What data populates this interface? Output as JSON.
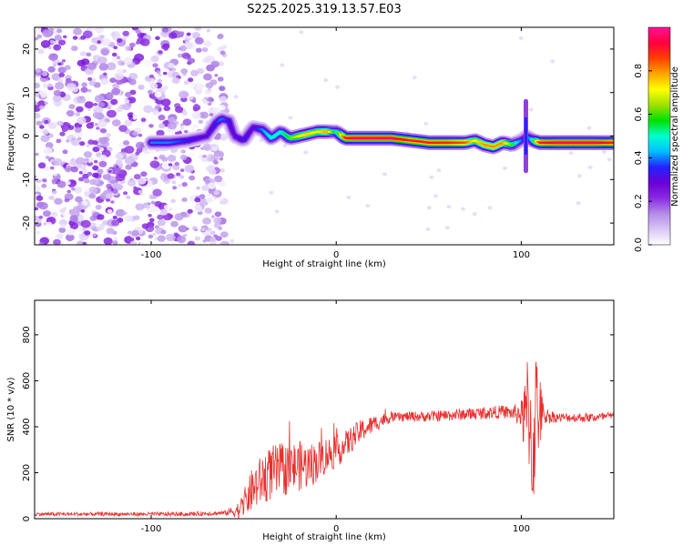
{
  "title": "S225.2025.319.13.57.E03",
  "chart_data": [
    {
      "type": "heatmap",
      "name": "spectrogram",
      "xlabel": "Height of straight line (km)",
      "ylabel": "Frequency (Hz)",
      "xlim": [
        -163,
        150
      ],
      "ylim": [
        -25,
        25
      ],
      "xticks": [
        {
          "value": -100,
          "label": "-100"
        },
        {
          "value": 0,
          "label": "0"
        },
        {
          "value": 100,
          "label": "100"
        }
      ],
      "yticks": [
        {
          "value": 20,
          "label": "20"
        },
        {
          "value": 10,
          "label": "10"
        },
        {
          "value": 0,
          "label": "0"
        },
        {
          "value": -10,
          "label": "-10"
        },
        {
          "value": -20,
          "label": "-20"
        }
      ],
      "colorbar": {
        "label": "Normalized spectral amplitude",
        "range": [
          0,
          1
        ],
        "ticks": [
          {
            "value": 0.0,
            "label": "0.0"
          },
          {
            "value": 0.2,
            "label": "0.2"
          },
          {
            "value": 0.4,
            "label": "0.4"
          },
          {
            "value": 0.6,
            "label": "0.6"
          },
          {
            "value": 0.8,
            "label": "0.8"
          }
        ],
        "stops": [
          "#ffffff",
          "#d9c6f5",
          "#b48ce8",
          "#8a2be2",
          "#6a00d4",
          "#2222ff",
          "#00bfff",
          "#00ffcc",
          "#00e000",
          "#a0e000",
          "#ffff00",
          "#ffa500",
          "#ff4000",
          "#ff0040",
          "#ff1493"
        ]
      },
      "noise_region_x": [
        -163,
        -60
      ],
      "ridge": {
        "x": [
          -100,
          -90,
          -80,
          -70,
          -65,
          -62,
          -58,
          -55,
          -50,
          -45,
          -40,
          -35,
          -30,
          -25,
          -20,
          -15,
          -10,
          -5,
          0,
          5,
          10,
          20,
          30,
          40,
          50,
          60,
          70,
          75,
          80,
          85,
          90,
          95,
          100,
          103,
          106,
          110,
          120,
          130,
          140,
          150
        ],
        "y": [
          -1.5,
          -1.5,
          -1,
          0,
          3,
          4,
          3.5,
          0,
          -1,
          2,
          1.5,
          -0.5,
          1,
          -0.5,
          0,
          0.5,
          1,
          1,
          1,
          -0.5,
          -0.5,
          -0.5,
          -0.5,
          -1,
          -1.5,
          -1.5,
          -1.5,
          -1,
          -2,
          -2.5,
          -1.5,
          -2,
          -1,
          0,
          -1,
          -1.5,
          -1.5,
          -1.5,
          -1.5,
          -1.5
        ],
        "amp": [
          0.4,
          0.4,
          0.35,
          0.3,
          0.35,
          0.4,
          0.35,
          0.3,
          0.35,
          0.3,
          0.4,
          0.5,
          0.5,
          0.6,
          0.7,
          0.75,
          0.7,
          0.8,
          0.5,
          0.9,
          0.95,
          0.95,
          0.95,
          0.9,
          0.9,
          0.9,
          0.85,
          0.7,
          0.8,
          0.8,
          0.8,
          0.6,
          0.4,
          0.3,
          0.5,
          0.9,
          0.95,
          0.95,
          0.95,
          0.9
        ]
      },
      "noise_amp_max": 0.25
    },
    {
      "type": "line",
      "name": "snr",
      "xlabel": "Height of straight line (km)",
      "ylabel": "SNR (10 * v/v)",
      "xlim": [
        -163,
        150
      ],
      "ylim": [
        0,
        950
      ],
      "xticks": [
        {
          "value": -100,
          "label": "-100"
        },
        {
          "value": 0,
          "label": "0"
        },
        {
          "value": 100,
          "label": "100"
        }
      ],
      "yticks": [
        {
          "value": 0,
          "label": "0"
        },
        {
          "value": 200,
          "label": "200"
        },
        {
          "value": 400,
          "label": "400"
        },
        {
          "value": 600,
          "label": "600"
        },
        {
          "value": 800,
          "label": "800"
        }
      ],
      "color": "#e8302f",
      "envelope": {
        "x": [
          -163,
          -120,
          -80,
          -60,
          -52,
          -48,
          -45,
          -40,
          -35,
          -30,
          -25,
          -20,
          -15,
          -10,
          -5,
          0,
          5,
          10,
          15,
          20,
          25,
          30,
          40,
          50,
          60,
          70,
          80,
          90,
          95,
          100,
          102,
          104,
          106,
          108,
          110,
          112,
          115,
          120,
          130,
          140,
          150
        ],
        "y": [
          20,
          20,
          20,
          25,
          40,
          90,
          130,
          170,
          200,
          210,
          220,
          230,
          230,
          250,
          280,
          290,
          320,
          360,
          390,
          410,
          430,
          440,
          445,
          445,
          450,
          455,
          460,
          465,
          460,
          455,
          420,
          500,
          250,
          500,
          460,
          450,
          445,
          440,
          440,
          440,
          445
        ]
      },
      "noise": {
        "x": [
          -163,
          -120,
          -60,
          -52,
          -45,
          -35,
          -20,
          0,
          20,
          30,
          60,
          95,
          100,
          103,
          106,
          108,
          110,
          112,
          120,
          150
        ],
        "amp": [
          8,
          8,
          10,
          40,
          100,
          120,
          110,
          70,
          40,
          20,
          25,
          30,
          60,
          250,
          300,
          250,
          180,
          40,
          20,
          20
        ]
      }
    }
  ]
}
